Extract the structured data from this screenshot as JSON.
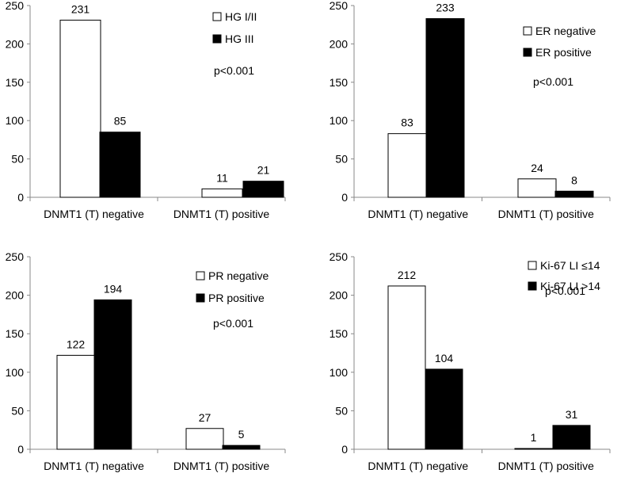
{
  "chart_data": [
    {
      "type": "bar",
      "categories": [
        "DNMT1 (T) negative",
        "DNMT1 (T) positive"
      ],
      "series": [
        {
          "name": "HG I/II",
          "values": [
            231,
            11
          ],
          "color": "#ffffff"
        },
        {
          "name": "HG III",
          "values": [
            85,
            21
          ],
          "color": "#000000"
        }
      ],
      "ylim": [
        0,
        250
      ],
      "yticks": [
        0,
        50,
        100,
        150,
        200,
        250
      ],
      "annotation": "p<0.001",
      "legend_position": "top-right"
    },
    {
      "type": "bar",
      "categories": [
        "DNMT1 (T) negative",
        "DNMT1 (T) positive"
      ],
      "series": [
        {
          "name": "ER negative",
          "values": [
            83,
            24
          ],
          "color": "#ffffff"
        },
        {
          "name": "ER positive",
          "values": [
            233,
            8
          ],
          "color": "#000000"
        }
      ],
      "ylim": [
        0,
        250
      ],
      "yticks": [
        0,
        50,
        100,
        150,
        200,
        250
      ],
      "annotation": "p<0.001",
      "legend_position": "top-right"
    },
    {
      "type": "bar",
      "categories": [
        "DNMT1 (T) negative",
        "DNMT1 (T) positive"
      ],
      "series": [
        {
          "name": "PR negative",
          "values": [
            122,
            27
          ],
          "color": "#ffffff"
        },
        {
          "name": "PR positive",
          "values": [
            194,
            5
          ],
          "color": "#000000"
        }
      ],
      "ylim": [
        0,
        250
      ],
      "yticks": [
        0,
        50,
        100,
        150,
        200,
        250
      ],
      "annotation": "p<0.001",
      "legend_position": "top-right"
    },
    {
      "type": "bar",
      "categories": [
        "DNMT1 (T) negative",
        "DNMT1 (T) positive"
      ],
      "series": [
        {
          "name": "Ki-67 LI ≤14",
          "values": [
            212,
            1
          ],
          "color": "#ffffff"
        },
        {
          "name": "Ki-67 LI >14",
          "values": [
            104,
            31
          ],
          "color": "#000000"
        }
      ],
      "ylim": [
        0,
        250
      ],
      "yticks": [
        0,
        50,
        100,
        150,
        200,
        250
      ],
      "annotation": "p<0.001",
      "legend_position": "top-right"
    }
  ]
}
